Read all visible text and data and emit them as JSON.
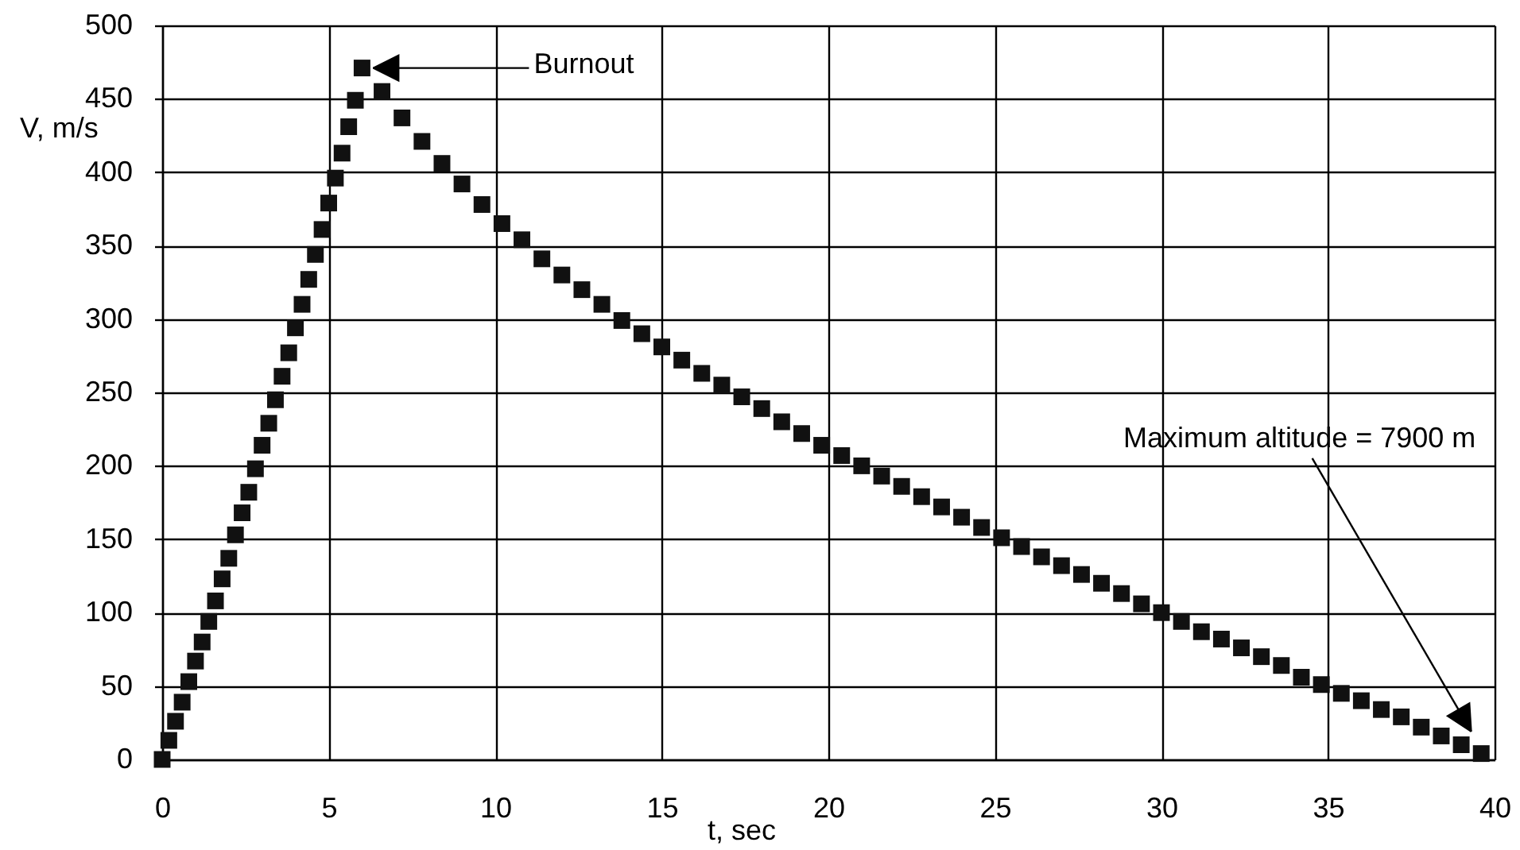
{
  "chart_data": {
    "type": "scatter",
    "xlabel": "t, sec",
    "ylabel": "V, m/s",
    "x": [
      0,
      0.2,
      0.4,
      0.6,
      0.8,
      1,
      1.2,
      1.4,
      1.6,
      1.8,
      2,
      2.2,
      2.4,
      2.6,
      2.8,
      3,
      3.2,
      3.4,
      3.6,
      3.8,
      4,
      4.2,
      4.4,
      4.6,
      4.8,
      5,
      5.2,
      5.4,
      5.6,
      5.8,
      6,
      6.6,
      7.2,
      7.8,
      8.4,
      9,
      9.6,
      10.2,
      10.8,
      11.4,
      12,
      12.6,
      13.2,
      13.8,
      14.4,
      15,
      15.6,
      16.2,
      16.8,
      17.4,
      18,
      18.6,
      19.2,
      19.8,
      20.4,
      21,
      21.6,
      22.2,
      22.8,
      23.4,
      24,
      24.6,
      25.2,
      25.8,
      26.4,
      27,
      27.6,
      28.2,
      28.8,
      29.4,
      30,
      30.6,
      31.2,
      31.8,
      32.4,
      33,
      33.6,
      34.2,
      34.8,
      35.4,
      36,
      36.6,
      37.2,
      37.8,
      38.4,
      39,
      39.6
    ],
    "series": [
      {
        "color": "#111111",
        "values": [
          0,
          13,
          26,
          39,
          53,
          67,
          80,
          94,
          108,
          123,
          137,
          153,
          168,
          182,
          198,
          214,
          229,
          245,
          261,
          277,
          294,
          310,
          327,
          344,
          361,
          379,
          396,
          413,
          431,
          449,
          471,
          455,
          437,
          421,
          406,
          392,
          378,
          365,
          354,
          341,
          330,
          320,
          310,
          299,
          290,
          281,
          272,
          263,
          255,
          247,
          239,
          230,
          222,
          214,
          207,
          200,
          193,
          186,
          179,
          172,
          165,
          158,
          151,
          145,
          138,
          132,
          126,
          120,
          113,
          106,
          100,
          94,
          87,
          82,
          76,
          70,
          64,
          56,
          51,
          45,
          40,
          34,
          29,
          22,
          16,
          10,
          4
        ]
      }
    ],
    "xlim": [
      0,
      40
    ],
    "ylim": [
      0,
      500
    ],
    "xticks": [
      0,
      5,
      10,
      15,
      20,
      25,
      30,
      35,
      40
    ],
    "yticks": [
      0,
      50,
      100,
      150,
      200,
      250,
      300,
      350,
      400,
      450,
      500
    ],
    "grid": true,
    "marker": "square",
    "annotations": [
      {
        "text": "Burnout",
        "x": 6,
        "y": 471
      },
      {
        "text": "Maximum altitude = 7900 m",
        "x": 39.3,
        "y": 19
      }
    ]
  }
}
